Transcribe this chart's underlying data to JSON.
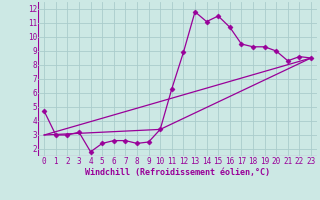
{
  "xlabel": "Windchill (Refroidissement éolien,°C)",
  "bg_color": "#cce8e4",
  "line_color": "#990099",
  "grid_color": "#aacccc",
  "xlim": [
    -0.5,
    23.5
  ],
  "ylim": [
    1.5,
    12.5
  ],
  "xticks": [
    0,
    1,
    2,
    3,
    4,
    5,
    6,
    7,
    8,
    9,
    10,
    11,
    12,
    13,
    14,
    15,
    16,
    17,
    18,
    19,
    20,
    21,
    22,
    23
  ],
  "yticks": [
    2,
    3,
    4,
    5,
    6,
    7,
    8,
    9,
    10,
    11,
    12
  ],
  "series1_x": [
    0,
    1,
    2,
    3,
    4,
    5,
    6,
    7,
    8,
    9,
    10,
    11,
    12,
    13,
    14,
    15,
    16,
    17,
    18,
    19,
    20,
    21,
    22,
    23
  ],
  "series1_y": [
    4.7,
    3.0,
    3.0,
    3.2,
    1.8,
    2.4,
    2.6,
    2.6,
    2.4,
    2.5,
    3.4,
    6.3,
    8.9,
    11.8,
    11.1,
    11.5,
    10.7,
    9.5,
    9.3,
    9.3,
    9.0,
    8.3,
    8.6,
    8.5
  ],
  "series2_x": [
    0,
    10,
    23
  ],
  "series2_y": [
    3.0,
    3.4,
    8.5
  ],
  "series3_x": [
    0,
    23
  ],
  "series3_y": [
    3.0,
    8.5
  ],
  "marker": "D",
  "markersize": 2.5,
  "linewidth": 0.9,
  "tick_fontsize": 5.5,
  "xlabel_fontsize": 6.0
}
